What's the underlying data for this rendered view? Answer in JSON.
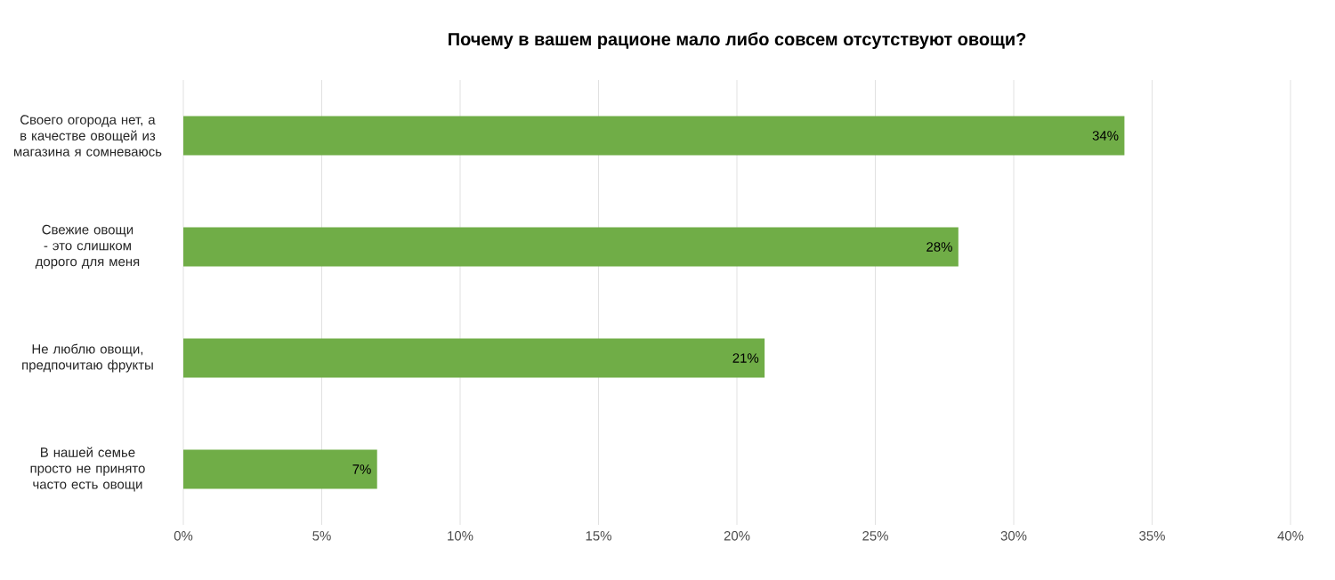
{
  "chart_data": {
    "type": "bar",
    "orientation": "horizontal",
    "title": "Почему в вашем рационе мало либо совсем отсутствуют овощи?",
    "categories": [
      "Своего огорода нет, а в качестве овощей из магазина я сомневаюсь",
      "Свежие овощи - это слишком дорого для меня",
      "Не люблю овощи, предпочитаю фрукты",
      "В нашей семье просто не принято часто есть овощи"
    ],
    "values": [
      34,
      28,
      21,
      7
    ],
    "value_labels": [
      "34%",
      "28%",
      "21%",
      "7%"
    ],
    "color": "#70ad47",
    "xlim": [
      0,
      40
    ],
    "xticks": [
      {
        "value": 0,
        "label": "0%"
      },
      {
        "value": 5,
        "label": "5%"
      },
      {
        "value": 10,
        "label": "10%"
      },
      {
        "value": 15,
        "label": "15%"
      },
      {
        "value": 20,
        "label": "20%"
      },
      {
        "value": 25,
        "label": "25%"
      },
      {
        "value": 30,
        "label": "30%"
      },
      {
        "value": 35,
        "label": "35%"
      },
      {
        "value": 40,
        "label": "40%"
      }
    ],
    "grid": "x"
  }
}
